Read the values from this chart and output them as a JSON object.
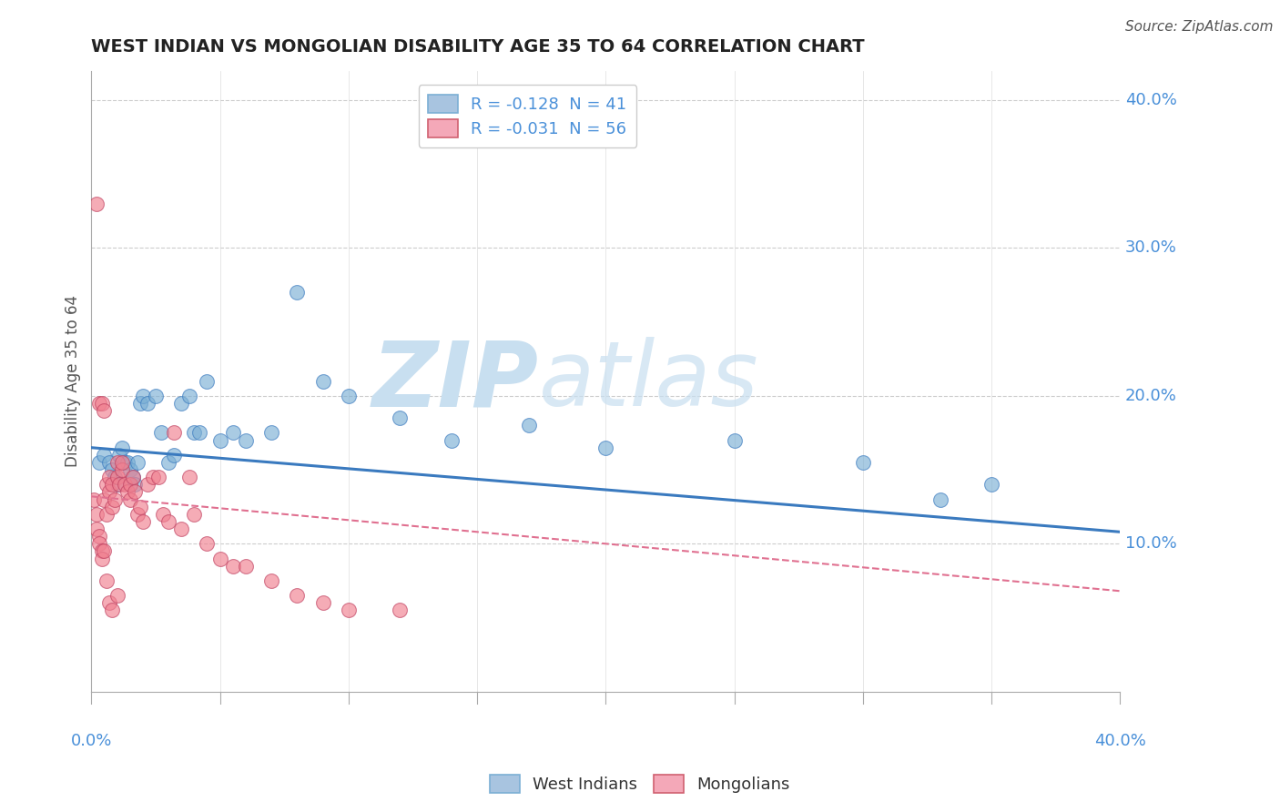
{
  "title": "WEST INDIAN VS MONGOLIAN DISABILITY AGE 35 TO 64 CORRELATION CHART",
  "source": "Source: ZipAtlas.com",
  "ylabel": "Disability Age 35 to 64",
  "legend_entries": [
    {
      "label": "R = -0.128  N = 41",
      "color": "#a8c4e0"
    },
    {
      "label": "R = -0.031  N = 56",
      "color": "#f4a8b8"
    }
  ],
  "legend_labels": [
    "West Indians",
    "Mongolians"
  ],
  "west_indian_color": "#7bafd4",
  "mongolian_color": "#f08090",
  "trend_wi_color": "#3a7abf",
  "trend_mg_color": "#e07090",
  "xlim": [
    0.0,
    0.4
  ],
  "ylim": [
    0.0,
    0.42
  ],
  "west_indians_x": [
    0.003,
    0.005,
    0.007,
    0.008,
    0.009,
    0.01,
    0.011,
    0.012,
    0.013,
    0.014,
    0.015,
    0.016,
    0.017,
    0.018,
    0.019,
    0.02,
    0.022,
    0.025,
    0.027,
    0.03,
    0.032,
    0.035,
    0.038,
    0.04,
    0.042,
    0.045,
    0.05,
    0.055,
    0.06,
    0.07,
    0.08,
    0.09,
    0.1,
    0.12,
    0.14,
    0.17,
    0.2,
    0.25,
    0.3,
    0.33,
    0.35
  ],
  "west_indians_y": [
    0.155,
    0.16,
    0.155,
    0.15,
    0.145,
    0.14,
    0.16,
    0.165,
    0.155,
    0.155,
    0.15,
    0.145,
    0.14,
    0.155,
    0.195,
    0.2,
    0.195,
    0.2,
    0.175,
    0.155,
    0.16,
    0.195,
    0.2,
    0.175,
    0.175,
    0.21,
    0.17,
    0.175,
    0.17,
    0.175,
    0.27,
    0.21,
    0.2,
    0.185,
    0.17,
    0.18,
    0.165,
    0.17,
    0.155,
    0.13,
    0.14
  ],
  "mongolians_x": [
    0.001,
    0.002,
    0.002,
    0.003,
    0.003,
    0.004,
    0.004,
    0.005,
    0.005,
    0.006,
    0.006,
    0.007,
    0.007,
    0.008,
    0.008,
    0.009,
    0.01,
    0.01,
    0.011,
    0.012,
    0.012,
    0.013,
    0.014,
    0.015,
    0.015,
    0.016,
    0.017,
    0.018,
    0.019,
    0.02,
    0.022,
    0.024,
    0.026,
    0.028,
    0.03,
    0.032,
    0.035,
    0.038,
    0.04,
    0.045,
    0.05,
    0.055,
    0.06,
    0.07,
    0.08,
    0.09,
    0.1,
    0.12,
    0.002,
    0.003,
    0.004,
    0.005,
    0.006,
    0.007,
    0.008,
    0.01
  ],
  "mongolians_y": [
    0.13,
    0.12,
    0.11,
    0.105,
    0.1,
    0.095,
    0.09,
    0.13,
    0.095,
    0.14,
    0.12,
    0.145,
    0.135,
    0.14,
    0.125,
    0.13,
    0.155,
    0.145,
    0.14,
    0.15,
    0.155,
    0.14,
    0.135,
    0.14,
    0.13,
    0.145,
    0.135,
    0.12,
    0.125,
    0.115,
    0.14,
    0.145,
    0.145,
    0.12,
    0.115,
    0.175,
    0.11,
    0.145,
    0.12,
    0.1,
    0.09,
    0.085,
    0.085,
    0.075,
    0.065,
    0.06,
    0.055,
    0.055,
    0.33,
    0.195,
    0.195,
    0.19,
    0.075,
    0.06,
    0.055,
    0.065
  ],
  "wi_trend_x0": 0.0,
  "wi_trend_y0": 0.165,
  "wi_trend_x1": 0.4,
  "wi_trend_y1": 0.108,
  "mg_trend_x0": 0.0,
  "mg_trend_y0": 0.132,
  "mg_trend_x1": 0.4,
  "mg_trend_y1": 0.068
}
